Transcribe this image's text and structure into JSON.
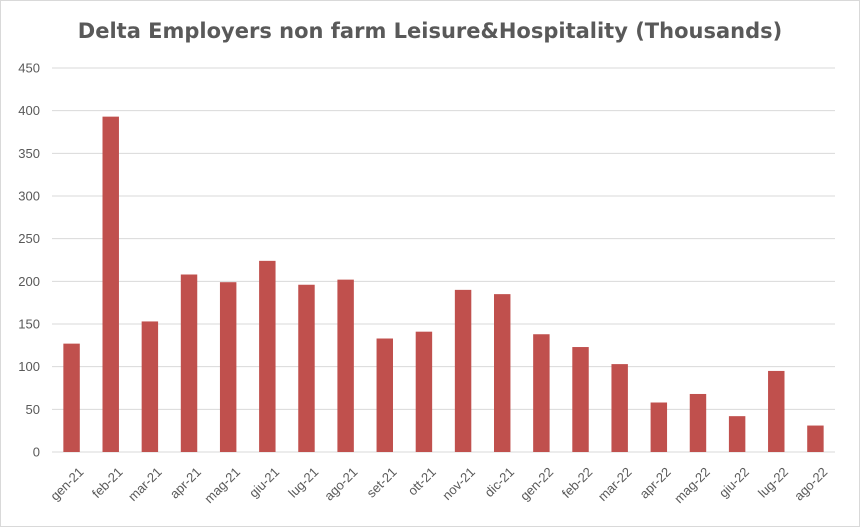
{
  "chart_data": {
    "type": "bar",
    "title": "Delta Employers non farm Leisure&Hospitality (Thousands)",
    "xlabel": "",
    "ylabel": "",
    "categories": [
      "gen-21",
      "feb-21",
      "mar-21",
      "apr-21",
      "mag-21",
      "giu-21",
      "lug-21",
      "ago-21",
      "set-21",
      "ott-21",
      "nov-21",
      "dic-21",
      "gen-22",
      "feb-22",
      "mar-22",
      "apr-22",
      "mag-22",
      "giu-22",
      "lug-22",
      "ago-22"
    ],
    "values": [
      127,
      393,
      153,
      208,
      199,
      224,
      196,
      202,
      133,
      141,
      190,
      185,
      138,
      123,
      103,
      58,
      68,
      42,
      95,
      31
    ],
    "ylim": [
      0,
      450
    ],
    "yticks": [
      0,
      50,
      100,
      150,
      200,
      250,
      300,
      350,
      400,
      450
    ],
    "grid": true,
    "legend": "none",
    "colors": {
      "bar": "#c0504d",
      "grid": "#d9d9d9",
      "text": "#595959"
    }
  }
}
